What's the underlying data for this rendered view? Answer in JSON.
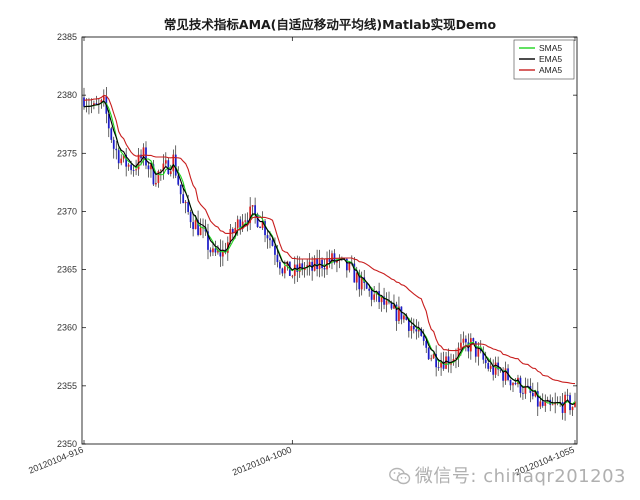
{
  "chart_data": {
    "type": "candlestick",
    "title": "常见技术指标AMA(自适应移动平均线)Matlab实现Demo",
    "xlabel": "",
    "ylabel": "",
    "ylim": [
      2350,
      2385
    ],
    "yticks": [
      2350,
      2355,
      2360,
      2365,
      2370,
      2375,
      2380,
      2385
    ],
    "xticks": [
      {
        "index": 0,
        "label": "20120104-916"
      },
      {
        "index": 84,
        "label": "20120104-1000"
      },
      {
        "index": 198,
        "label": "20120104-1055"
      }
    ],
    "grid": false,
    "legend_position": "top-right",
    "colors": {
      "up": "#d62020",
      "down": "#1c1cc8",
      "sma": "#1fd41f",
      "ema": "#000000",
      "ama": "#c81e1e"
    },
    "series": [
      {
        "name": "SMA5",
        "key": "sma"
      },
      {
        "name": "EMA5",
        "key": "ema"
      },
      {
        "name": "AMA5",
        "key": "ama"
      }
    ],
    "anchors": [
      [
        0,
        2379.8
      ],
      [
        4,
        2378.8
      ],
      [
        8,
        2379.2
      ],
      [
        12,
        2375.5
      ],
      [
        16,
        2374.2
      ],
      [
        20,
        2373.8
      ],
      [
        24,
        2374.8
      ],
      [
        28,
        2373.0
      ],
      [
        32,
        2373.5
      ],
      [
        36,
        2374.5
      ],
      [
        40,
        2370.5
      ],
      [
        44,
        2369.2
      ],
      [
        48,
        2368.0
      ],
      [
        52,
        2366.2
      ],
      [
        56,
        2366.5
      ],
      [
        60,
        2368.2
      ],
      [
        64,
        2369.6
      ],
      [
        68,
        2369.8
      ],
      [
        72,
        2369.0
      ],
      [
        76,
        2367.2
      ],
      [
        80,
        2365.2
      ],
      [
        84,
        2364.6
      ],
      [
        88,
        2365.2
      ],
      [
        92,
        2365.0
      ],
      [
        96,
        2365.6
      ],
      [
        100,
        2365.8
      ],
      [
        104,
        2365.4
      ],
      [
        108,
        2364.8
      ],
      [
        112,
        2363.6
      ],
      [
        116,
        2362.8
      ],
      [
        120,
        2362.2
      ],
      [
        124,
        2361.3
      ],
      [
        128,
        2361.2
      ],
      [
        132,
        2360.2
      ],
      [
        136,
        2358.8
      ],
      [
        140,
        2357.6
      ],
      [
        144,
        2357.2
      ],
      [
        148,
        2357.4
      ],
      [
        152,
        2358.2
      ],
      [
        156,
        2358.6
      ],
      [
        160,
        2357.4
      ],
      [
        164,
        2356.4
      ],
      [
        168,
        2356.2
      ],
      [
        172,
        2355.6
      ],
      [
        176,
        2355.0
      ],
      [
        180,
        2354.2
      ],
      [
        184,
        2353.3
      ],
      [
        188,
        2353.0
      ],
      [
        192,
        2353.4
      ],
      [
        195,
        2353.5
      ],
      [
        198,
        2353.2
      ]
    ],
    "seed": 7
  },
  "watermark": {
    "text": "微信号: chinaqr201203",
    "icon": "wechat-icon"
  }
}
